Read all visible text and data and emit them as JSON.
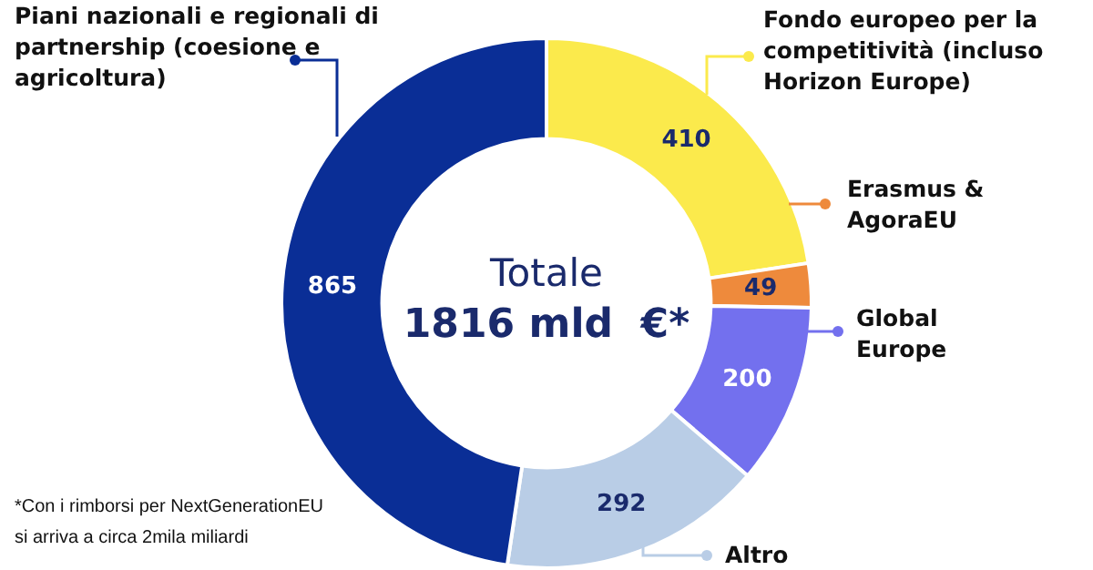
{
  "chart_data": {
    "type": "donut",
    "title": "Totale",
    "subtitle": "1816 mld  €*",
    "categories": [
      "Fondo europeo per la competitività (incluso Horizon Europe)",
      "Erasmus & AgoraEU",
      "Global Europe",
      "Altro",
      "Piani nazionali e regionali di partnership (coesione e agricoltura)"
    ],
    "values": [
      410,
      49,
      200,
      292,
      865
    ],
    "colors": [
      "#fbea4c",
      "#ee8a3c",
      "#7370ee",
      "#b9cde6",
      "#0a2e96"
    ],
    "data_labels": true,
    "legend": "right",
    "annotations": [
      "*Con i rimborsi per NextGenerationEU si arriva a circa 2mila miliardi"
    ]
  }
}
